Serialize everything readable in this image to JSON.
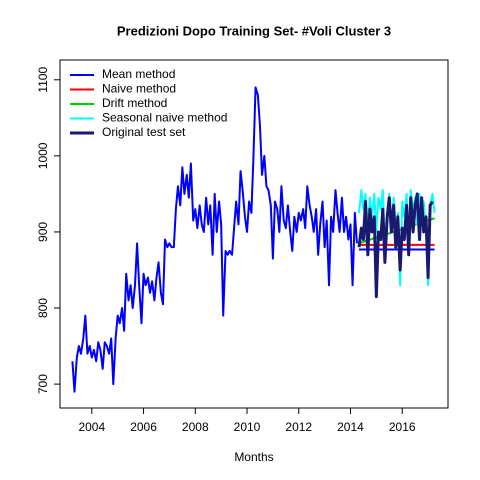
{
  "chart_data": {
    "type": "line",
    "title": "Predizioni Dopo Training Set- #Voli Cluster  3",
    "x_label": "Months",
    "xlim": [
      2002.77,
      2017.77
    ],
    "ylim": [
      668.6,
      1126
    ],
    "xticks": [
      2004,
      2006,
      2008,
      2010,
      2012,
      2014,
      2016
    ],
    "yticks": [
      700,
      800,
      900,
      1000,
      1100
    ],
    "legend": "top-left",
    "series": [
      {
        "color": "#0000ff",
        "width": 2,
        "x": [
          2003.25,
          2003.33,
          2003.42,
          2003.5,
          2003.58,
          2003.67,
          2003.75,
          2003.83,
          2003.92,
          2004.0,
          2004.08,
          2004.17,
          2004.25,
          2004.33,
          2004.42,
          2004.5,
          2004.58,
          2004.67,
          2004.75,
          2004.83,
          2004.92,
          2005.0,
          2005.08,
          2005.17,
          2005.25,
          2005.33,
          2005.42,
          2005.5,
          2005.58,
          2005.67,
          2005.75,
          2005.83,
          2005.92,
          2006.0,
          2006.08,
          2006.17,
          2006.25,
          2006.33,
          2006.42,
          2006.5,
          2006.58,
          2006.67,
          2006.75,
          2006.83,
          2006.92,
          2007.0,
          2007.08,
          2007.17,
          2007.25,
          2007.33,
          2007.42,
          2007.5,
          2007.58,
          2007.67,
          2007.75,
          2007.83,
          2007.92,
          2008.0,
          2008.08,
          2008.17,
          2008.25,
          2008.33,
          2008.42,
          2008.5,
          2008.58,
          2008.67,
          2008.75,
          2008.83,
          2008.92,
          2009.0,
          2009.08,
          2009.17,
          2009.25,
          2009.33,
          2009.42,
          2009.5,
          2009.58,
          2009.67,
          2009.75,
          2009.83,
          2009.92,
          2010.0,
          2010.08,
          2010.17,
          2010.25,
          2010.33,
          2010.42,
          2010.5,
          2010.58,
          2010.67,
          2010.75,
          2010.83,
          2010.92,
          2011.0,
          2011.08,
          2011.17,
          2011.25,
          2011.33,
          2011.42,
          2011.5,
          2011.58,
          2011.67,
          2011.75,
          2011.83,
          2011.92,
          2012.0,
          2012.08,
          2012.17,
          2012.25,
          2012.33,
          2012.42,
          2012.5,
          2012.58,
          2012.67,
          2012.75,
          2012.83,
          2012.92,
          2013.0,
          2013.08,
          2013.17,
          2013.25,
          2013.33,
          2013.42,
          2013.5,
          2013.58,
          2013.67,
          2013.75,
          2013.83,
          2013.92,
          2014.0,
          2014.08,
          2014.17,
          2014.25
        ],
        "values": [
          730,
          690,
          735,
          750,
          740,
          760,
          790,
          740,
          750,
          735,
          745,
          730,
          755,
          745,
          720,
          755,
          750,
          740,
          760,
          700,
          760,
          790,
          780,
          800,
          770,
          845,
          810,
          830,
          800,
          830,
          885,
          830,
          780,
          845,
          830,
          840,
          820,
          835,
          810,
          840,
          860,
          820,
          805,
          890,
          880,
          885,
          880,
          880,
          930,
          960,
          935,
          985,
          950,
          975,
          945,
          990,
          915,
          930,
          905,
          935,
          910,
          900,
          945,
          910,
          935,
          870,
          950,
          900,
          940,
          910,
          790,
          875,
          870,
          875,
          870,
          905,
          940,
          910,
          980,
          955,
          920,
          900,
          940,
          925,
          1000,
          1090,
          1080,
          1040,
          975,
          1000,
          960,
          955,
          935,
          865,
          940,
          930,
          900,
          960,
          915,
          905,
          935,
          900,
          875,
          920,
          900,
          925,
          915,
          930,
          905,
          960,
          935,
          920,
          900,
          930,
          870,
          910,
          940,
          880,
          915,
          830,
          920,
          900,
          955,
          925,
          900,
          945,
          900,
          920,
          890,
          910,
          830,
          925,
          885
        ]
      },
      {
        "name": "Mean method",
        "color": "#0000ff",
        "width": 2,
        "x": [
          2014.33,
          2017.25
        ],
        "values": [
          877,
          877
        ]
      },
      {
        "name": "Naive method",
        "color": "#ff0000",
        "width": 2,
        "x": [
          2014.33,
          2017.25
        ],
        "values": [
          883,
          883
        ]
      },
      {
        "name": "Drift method",
        "color": "#00cd00",
        "width": 2,
        "x": [
          2014.33,
          2017.25
        ],
        "values": [
          885,
          918
        ]
      },
      {
        "name": "Seasonal naive method",
        "color": "#00ffff",
        "width": 2,
        "x": [
          2014.33,
          2014.42,
          2014.5,
          2014.58,
          2014.67,
          2014.75,
          2014.83,
          2014.92,
          2015.0,
          2015.08,
          2015.17,
          2015.25,
          2015.33,
          2015.42,
          2015.5,
          2015.58,
          2015.67,
          2015.75,
          2015.83,
          2015.92,
          2016.0,
          2016.08,
          2016.17,
          2016.25,
          2016.33,
          2016.42,
          2016.5,
          2016.58,
          2016.67,
          2016.75,
          2016.83,
          2016.92,
          2017.0,
          2017.08,
          2017.17,
          2017.25
        ],
        "values": [
          925,
          955,
          930,
          950,
          905,
          945,
          920,
          950,
          900,
          945,
          930,
          955,
          880,
          925,
          950,
          910,
          945,
          900,
          925,
          830,
          940,
          920,
          950,
          890,
          955,
          925,
          945,
          910,
          950,
          920,
          940,
          900,
          830,
          935,
          950,
          925
        ]
      },
      {
        "name": "Original test set",
        "color": "#191970",
        "width": 3,
        "x": [
          2014.33,
          2014.42,
          2014.5,
          2014.58,
          2014.67,
          2014.75,
          2014.83,
          2014.92,
          2015.0,
          2015.08,
          2015.17,
          2015.25,
          2015.33,
          2015.42,
          2015.5,
          2015.58,
          2015.67,
          2015.75,
          2015.83,
          2015.92,
          2016.0,
          2016.08,
          2016.17,
          2016.25,
          2016.33,
          2016.42,
          2016.5,
          2016.58,
          2016.67,
          2016.75,
          2016.83,
          2016.92,
          2017.0,
          2017.08,
          2017.17
        ],
        "values": [
          880,
          905,
          890,
          940,
          870,
          930,
          900,
          920,
          815,
          900,
          890,
          930,
          860,
          920,
          945,
          900,
          935,
          880,
          920,
          850,
          905,
          890,
          935,
          870,
          945,
          900,
          935,
          950,
          890,
          945,
          900,
          920,
          840,
          935,
          940
        ]
      }
    ]
  }
}
